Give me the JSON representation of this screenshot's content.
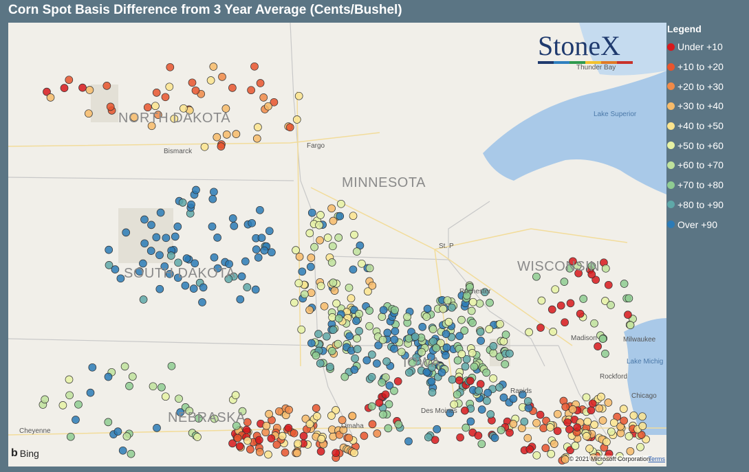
{
  "title": "Corn Spot Basis Difference from 3 Year Average (Cents/Bushel)",
  "legend": {
    "title": "Legend",
    "items": [
      {
        "label": "Under +10",
        "color": "#d7191c"
      },
      {
        "label": "+10 to +20",
        "color": "#e8552e"
      },
      {
        "label": "+20 to +30",
        "color": "#f08a48"
      },
      {
        "label": "+30 to +40",
        "color": "#f7bb6a"
      },
      {
        "label": "+40 to +50",
        "color": "#fbe48e"
      },
      {
        "label": "+50 to +60",
        "color": "#e6f2a4"
      },
      {
        "label": "+60 to +70",
        "color": "#bfe29c"
      },
      {
        "label": "+70 to +80",
        "color": "#8fcc92"
      },
      {
        "label": "+80 to +90",
        "color": "#5fa8a8"
      },
      {
        "label": "Over +90",
        "color": "#2c7bb6"
      }
    ]
  },
  "logo": {
    "text": "StoneX",
    "tm": "™",
    "bar_colors": [
      "#1f3a6e",
      "#2f7fbf",
      "#2f9a4e",
      "#f2c12e",
      "#e07a26",
      "#c8322a"
    ]
  },
  "states": [
    "NORTH DAKOTA",
    "MINNESOTA",
    "SOUTH DAKOTA",
    "WISCONSIN",
    "IOWA",
    "NEBRASKA"
  ],
  "cities": [
    "Bismarck",
    "Fargo",
    "St. P",
    "Rochester",
    "Madison",
    "Milwaukee",
    "Rockford",
    "Chicago",
    "Rapids",
    "Omaha",
    "Cheyenne",
    "Des Moines",
    "Thunder Bay"
  ],
  "lakes": [
    "Lake Superior",
    "Lake Michig"
  ],
  "attribution": {
    "provider": "Bing",
    "copyright": "© 2021 Microsoft Corporation",
    "terms": "Terms"
  }
}
